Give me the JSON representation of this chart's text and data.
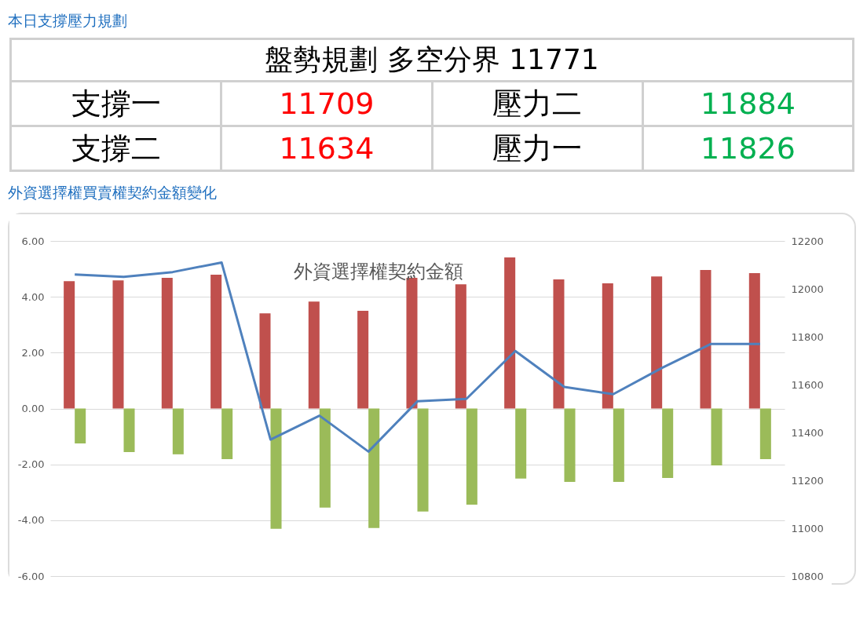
{
  "chart_data": [
    {
      "type": "other",
      "title": "本日支撐壓力規劃",
      "subtitle": "盤勢規劃 多空分界 11771",
      "annotations": [
        "支撐一",
        "11709",
        "壓力二",
        "11884",
        "支撐二",
        "11634",
        "壓力一",
        "11826"
      ],
      "colors": [
        "#000000",
        "#ff0000",
        "#000000",
        "#00b050",
        "#000000",
        "#ff0000",
        "#000000",
        "#00b050"
      ]
    },
    {
      "type": "bar",
      "title": "外資選擇權契約金額",
      "subtitle": "外資選擇權買賣權契約金額變化",
      "categories": [
        null,
        null,
        null,
        null,
        null,
        null,
        null,
        null,
        null,
        null,
        null,
        null,
        null,
        null,
        null
      ],
      "series": [
        {
          "color": "#c0504d",
          "values": [
            4.56,
            4.59,
            4.68,
            4.79,
            3.41,
            3.83,
            3.5,
            4.68,
            4.45,
            5.41,
            4.62,
            4.48,
            4.73,
            4.96,
            4.85
          ]
        },
        {
          "color": "#9bbb59",
          "values": [
            -1.25,
            -1.56,
            -1.64,
            -1.81,
            -4.31,
            -3.55,
            -4.28,
            -3.69,
            -3.44,
            -2.51,
            -2.63,
            -2.63,
            -2.49,
            -2.04,
            -1.81
          ]
        },
        {
          "type": "line",
          "axis": "y2",
          "color": "#4f81bd",
          "values": [
            12060,
            12050,
            12070,
            12110,
            11370,
            11470,
            11320,
            11530,
            11540,
            11740,
            11590,
            11560,
            11670,
            11770,
            11770
          ]
        }
      ],
      "ylim": [
        -6,
        6
      ],
      "yticks": [
        {
          "value": -6,
          "label": "-6.00"
        },
        {
          "value": -4,
          "label": "-4.00"
        },
        {
          "value": -2,
          "label": "-2.00"
        },
        {
          "value": 0,
          "label": "0.00"
        },
        {
          "value": 2,
          "label": "2.00"
        },
        {
          "value": 4,
          "label": "4.00"
        },
        {
          "value": 6,
          "label": "6.00"
        }
      ],
      "y2lim": [
        10800,
        12200
      ],
      "y2ticks": [
        10800,
        11000,
        11200,
        11400,
        11600,
        11800,
        12000,
        12200
      ],
      "grid": "y",
      "marker": "none",
      "line_style": "solid"
    }
  ]
}
